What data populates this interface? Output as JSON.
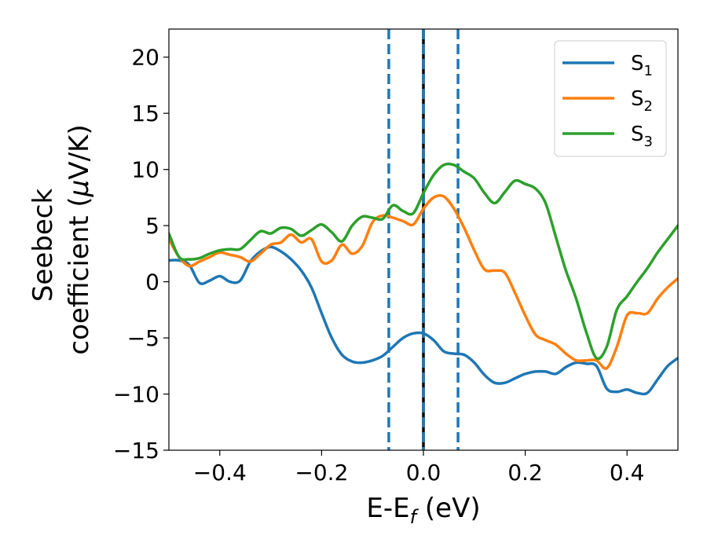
{
  "chart_data": {
    "type": "line",
    "xlabel": "E-E",
    "xlabel_sub": "f",
    "xlabel_unit": " (eV)",
    "ylabel_line1": "Seebeck",
    "ylabel_line2": "coefficient  (",
    "ylabel_mu": "μ",
    "ylabel_unit": "V/K)",
    "xlim": [
      -0.5,
      0.5
    ],
    "ylim": [
      -15,
      22.5
    ],
    "xticks": [
      -0.4,
      -0.2,
      0.0,
      0.2,
      0.4
    ],
    "xtick_labels": [
      "−0.4",
      "−0.2",
      "0.0",
      "0.2",
      "0.4"
    ],
    "yticks": [
      -15,
      -10,
      -5,
      0,
      5,
      10,
      15,
      20
    ],
    "ytick_labels": [
      "−15",
      "−10",
      "−5",
      "0",
      "5",
      "10",
      "15",
      "20"
    ],
    "legend_position": "top-right",
    "vlines": [
      {
        "x": -0.068,
        "style": "dashed",
        "color": "#1f77b4"
      },
      {
        "x": 0.0,
        "style": "solid",
        "color": "#000000"
      },
      {
        "x": 0.0,
        "style": "dashed",
        "color": "#1f77b4"
      },
      {
        "x": 0.068,
        "style": "dashed",
        "color": "#1f77b4"
      }
    ],
    "series": [
      {
        "name": "S",
        "sub": "1",
        "color": "#1f77b4",
        "x": [
          -0.5,
          -0.48,
          -0.46,
          -0.44,
          -0.42,
          -0.4,
          -0.38,
          -0.36,
          -0.34,
          -0.32,
          -0.3,
          -0.28,
          -0.26,
          -0.24,
          -0.22,
          -0.2,
          -0.18,
          -0.16,
          -0.14,
          -0.12,
          -0.1,
          -0.08,
          -0.06,
          -0.04,
          -0.02,
          0.0,
          0.02,
          0.04,
          0.06,
          0.08,
          0.1,
          0.12,
          0.14,
          0.16,
          0.18,
          0.2,
          0.22,
          0.24,
          0.26,
          0.28,
          0.3,
          0.32,
          0.34,
          0.36,
          0.38,
          0.4,
          0.42,
          0.44,
          0.46,
          0.48,
          0.5
        ],
        "y": [
          1.9,
          1.9,
          1.5,
          -0.1,
          0.1,
          0.5,
          0.0,
          0.1,
          1.8,
          2.7,
          3.1,
          2.7,
          2.0,
          1.0,
          -0.5,
          -2.8,
          -5.0,
          -6.5,
          -7.1,
          -7.2,
          -7.0,
          -6.6,
          -5.8,
          -5.0,
          -4.6,
          -4.6,
          -5.2,
          -6.2,
          -6.4,
          -6.5,
          -7.2,
          -8.3,
          -9.0,
          -9.0,
          -8.6,
          -8.2,
          -8.0,
          -8.0,
          -8.2,
          -7.6,
          -7.2,
          -7.3,
          -7.5,
          -9.5,
          -9.8,
          -9.6,
          -9.9,
          -9.9,
          -8.7,
          -7.5,
          -6.8
        ]
      },
      {
        "name": "S",
        "sub": "2",
        "color": "#ff7f0e",
        "x": [
          -0.5,
          -0.48,
          -0.46,
          -0.44,
          -0.42,
          -0.4,
          -0.38,
          -0.36,
          -0.34,
          -0.32,
          -0.3,
          -0.28,
          -0.26,
          -0.24,
          -0.22,
          -0.2,
          -0.18,
          -0.16,
          -0.14,
          -0.12,
          -0.1,
          -0.08,
          -0.06,
          -0.04,
          -0.02,
          0.0,
          0.02,
          0.04,
          0.06,
          0.08,
          0.1,
          0.12,
          0.14,
          0.16,
          0.18,
          0.2,
          0.22,
          0.24,
          0.26,
          0.28,
          0.3,
          0.32,
          0.34,
          0.36,
          0.38,
          0.4,
          0.42,
          0.44,
          0.46,
          0.48,
          0.5
        ],
        "y": [
          3.8,
          2.2,
          1.4,
          1.8,
          2.2,
          2.6,
          2.4,
          2.2,
          1.8,
          2.5,
          3.3,
          3.5,
          4.2,
          3.5,
          3.8,
          1.8,
          1.9,
          3.3,
          2.5,
          3.2,
          5.3,
          5.9,
          5.7,
          5.4,
          5.1,
          6.5,
          7.5,
          7.6,
          6.5,
          4.8,
          2.8,
          1.1,
          1.0,
          0.8,
          -1.0,
          -3.0,
          -4.7,
          -5.2,
          -5.6,
          -6.4,
          -7.0,
          -7.0,
          -7.0,
          -7.7,
          -5.8,
          -3.0,
          -2.8,
          -2.8,
          -1.5,
          -0.5,
          0.3
        ]
      },
      {
        "name": "S",
        "sub": "3",
        "color": "#2ca02c",
        "x": [
          -0.5,
          -0.48,
          -0.46,
          -0.44,
          -0.42,
          -0.4,
          -0.38,
          -0.36,
          -0.34,
          -0.32,
          -0.3,
          -0.28,
          -0.26,
          -0.24,
          -0.22,
          -0.2,
          -0.18,
          -0.16,
          -0.14,
          -0.12,
          -0.1,
          -0.08,
          -0.06,
          -0.04,
          -0.02,
          0.0,
          0.02,
          0.04,
          0.06,
          0.08,
          0.1,
          0.12,
          0.14,
          0.16,
          0.18,
          0.2,
          0.22,
          0.24,
          0.26,
          0.28,
          0.3,
          0.32,
          0.34,
          0.36,
          0.38,
          0.4,
          0.42,
          0.44,
          0.46,
          0.48,
          0.5
        ],
        "y": [
          4.3,
          2.2,
          2.0,
          2.1,
          2.5,
          2.8,
          2.9,
          2.9,
          3.7,
          4.5,
          4.3,
          4.8,
          4.7,
          4.1,
          4.6,
          5.1,
          4.4,
          3.6,
          5.0,
          5.8,
          5.7,
          5.6,
          6.8,
          6.3,
          6.1,
          7.9,
          9.5,
          10.4,
          10.4,
          9.8,
          9.2,
          7.9,
          7.0,
          8.0,
          9.0,
          8.7,
          8.3,
          7.0,
          4.0,
          1.0,
          -1.5,
          -4.5,
          -6.8,
          -5.8,
          -2.5,
          -1.3,
          0.0,
          1.2,
          2.6,
          3.8,
          5.0
        ]
      }
    ]
  }
}
